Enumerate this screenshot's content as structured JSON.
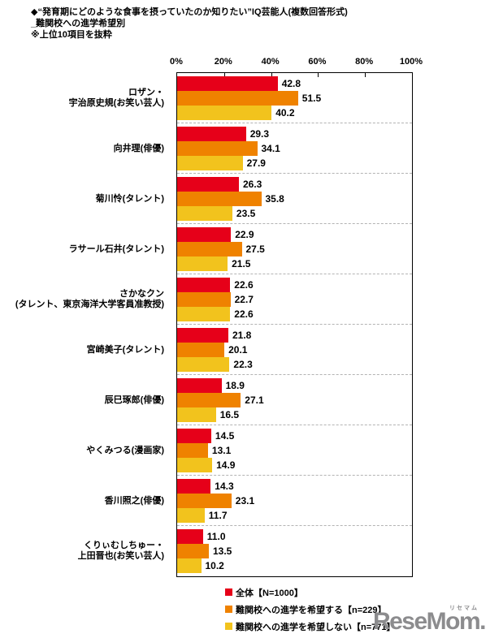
{
  "title": {
    "line1": "◆“発育期にどのような食事を摂っていたのか知りたい”IQ芸能人(複数回答形式)",
    "line2": "_難関校への進学希望別",
    "line3": "※上位10項目を抜粋"
  },
  "chart_data": {
    "type": "bar",
    "orientation": "horizontal",
    "unit": "%",
    "xlim": [
      0,
      100
    ],
    "x_ticks": [
      "0%",
      "20%",
      "40%",
      "60%",
      "80%",
      "100%"
    ],
    "grid": "dashed horizontal separators between categories",
    "legend_position": "bottom",
    "series": [
      {
        "key": "all",
        "name": "全体【N=1000】",
        "color": "#e60019"
      },
      {
        "key": "hope",
        "name": "難関校への進学を希望する【n=229】",
        "color": "#ef8200"
      },
      {
        "key": "no-hope",
        "name": "難関校への進学を希望しない【n=771】",
        "color": "#f2c31d"
      }
    ],
    "categories": [
      {
        "label_lines": [
          "ロザン・",
          "宇治原史規(お笑い芸人)"
        ],
        "values": [
          42.8,
          51.5,
          40.2
        ]
      },
      {
        "label_lines": [
          "向井理(俳優)"
        ],
        "values": [
          29.3,
          34.1,
          27.9
        ]
      },
      {
        "label_lines": [
          "菊川怜(タレント)"
        ],
        "values": [
          26.3,
          35.8,
          23.5
        ]
      },
      {
        "label_lines": [
          "ラサール石井(タレント)"
        ],
        "values": [
          22.9,
          27.5,
          21.5
        ]
      },
      {
        "label_lines": [
          "さかなクン",
          "(タレント、東京海洋大学客員准教授)"
        ],
        "values": [
          22.6,
          22.7,
          22.6
        ]
      },
      {
        "label_lines": [
          "宮崎美子(タレント)"
        ],
        "values": [
          21.8,
          20.1,
          22.3
        ]
      },
      {
        "label_lines": [
          "辰巳琢郎(俳優)"
        ],
        "values": [
          18.9,
          27.1,
          16.5
        ]
      },
      {
        "label_lines": [
          "やくみつる(漫画家)"
        ],
        "values": [
          14.5,
          13.1,
          14.9
        ]
      },
      {
        "label_lines": [
          "香川照之(俳優)"
        ],
        "values": [
          14.3,
          23.1,
          11.7
        ]
      },
      {
        "label_lines": [
          "くりぃむしちゅー・",
          "上田晋也(お笑い芸人)"
        ],
        "values": [
          11.0,
          13.5,
          10.2
        ]
      }
    ]
  },
  "logo": {
    "text": "ReseMom.",
    "ruby": "リセマム",
    "color": "#8c8c8e"
  }
}
